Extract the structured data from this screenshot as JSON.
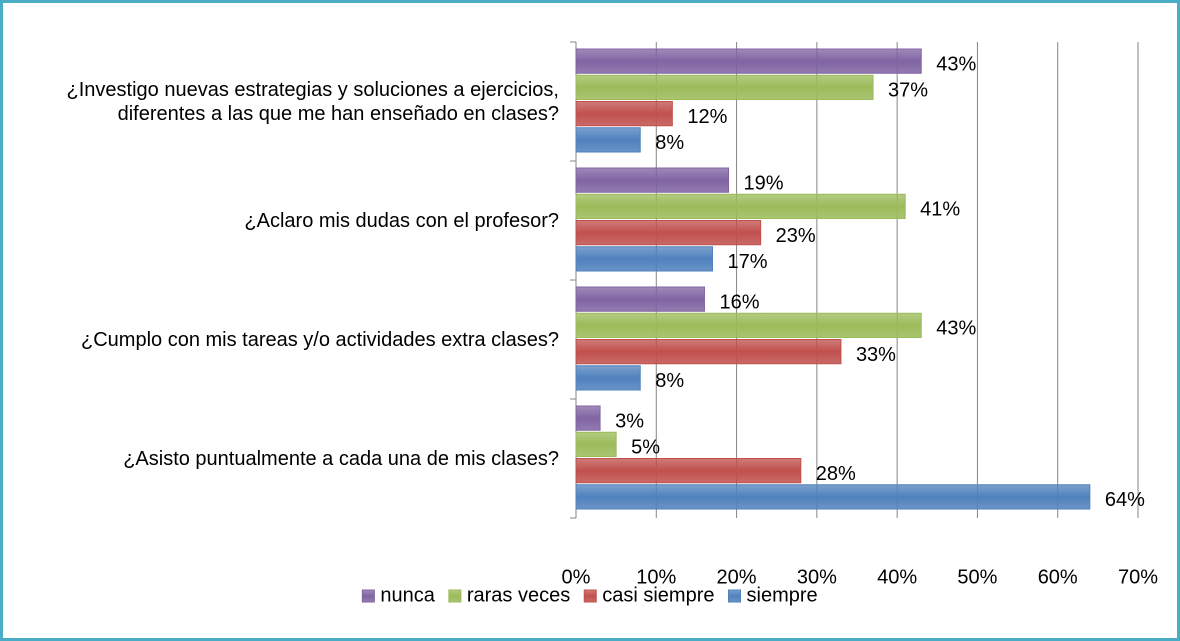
{
  "chart_data": {
    "type": "bar",
    "orientation": "horizontal",
    "categories": [
      "¿Investigo nuevas estrategias y soluciones a ejercicios, diferentes a las que me han enseñado en clases?",
      "¿Aclaro mis dudas con el profesor?",
      "¿Cumplo con mis tareas y/o actividades extra clases?",
      "¿Asisto puntualmente a cada una de mis clases?"
    ],
    "series": [
      {
        "name": "nunca",
        "color": "#8064a2",
        "values": [
          43,
          19,
          16,
          3
        ],
        "value_labels": [
          "43%",
          "19%",
          "16%",
          "3%"
        ]
      },
      {
        "name": "raras veces",
        "color": "#9bbb59",
        "values": [
          37,
          41,
          43,
          5
        ],
        "value_labels": [
          "37%",
          "41%",
          "43%",
          "5%"
        ]
      },
      {
        "name": "casi siempre",
        "color": "#c0504d",
        "values": [
          12,
          23,
          33,
          28
        ],
        "value_labels": [
          "12%",
          "23%",
          "33%",
          "28%"
        ]
      },
      {
        "name": "siempre",
        "color": "#4f81bd",
        "values": [
          8,
          17,
          8,
          64
        ],
        "value_labels": [
          "8%",
          "17%",
          "8%",
          "64%"
        ]
      }
    ],
    "xlim": [
      0,
      70
    ],
    "xticks": [
      {
        "value": 0,
        "label": "0%"
      },
      {
        "value": 10,
        "label": "10%"
      },
      {
        "value": 20,
        "label": "20%"
      },
      {
        "value": 30,
        "label": "30%"
      },
      {
        "value": 40,
        "label": "40%"
      },
      {
        "value": 50,
        "label": "50%"
      },
      {
        "value": 60,
        "label": "60%"
      },
      {
        "value": 70,
        "label": "70%"
      }
    ],
    "grid": true,
    "legend": "bottom"
  }
}
